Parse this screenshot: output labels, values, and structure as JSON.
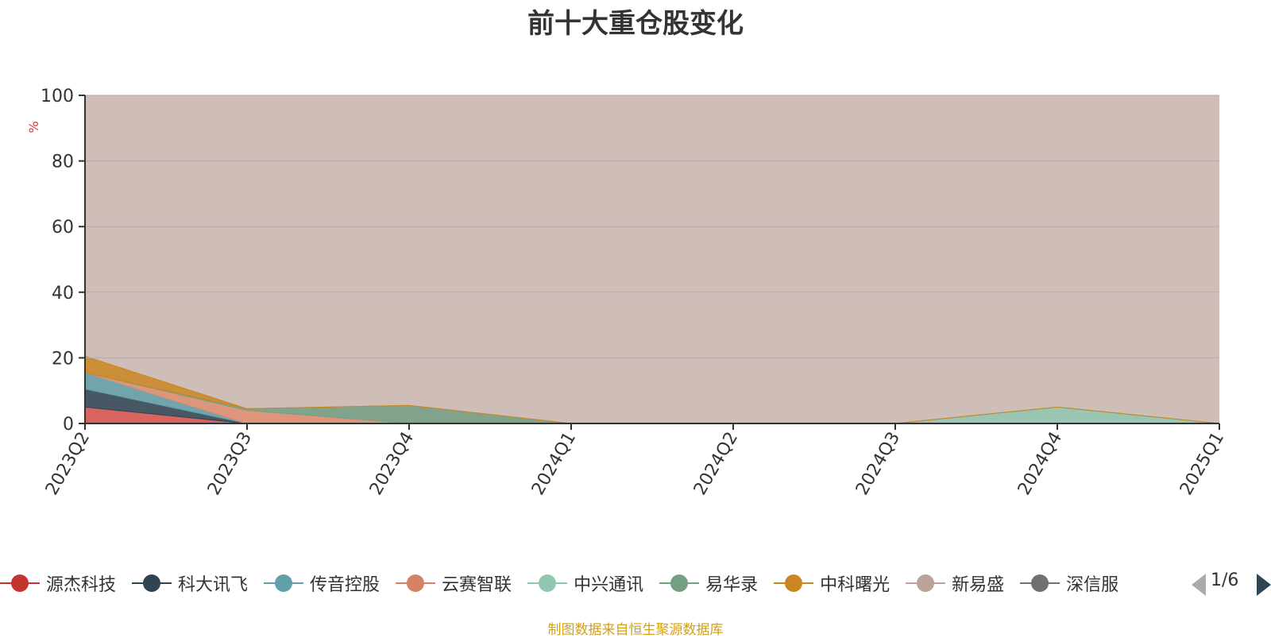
{
  "title": "前十大重仓股变化",
  "unit_label": "%",
  "source_note": "制图数据来自恒生聚源数据库",
  "pager": {
    "label": "1/6"
  },
  "chart_data": {
    "type": "area",
    "stacked": true,
    "title": "前十大重仓股变化",
    "ylabel": "%",
    "ylim": [
      0,
      100
    ],
    "yticks": [
      0,
      20,
      40,
      60,
      80,
      100
    ],
    "grid": true,
    "legend_position": "bottom",
    "categories": [
      "2023Q2",
      "2023Q3",
      "2023Q4",
      "2024Q1",
      "2024Q2",
      "2024Q3",
      "2024Q4",
      "2025Q1"
    ],
    "series": [
      {
        "name": "源杰科技",
        "color": "#d9534f",
        "values": [
          5,
          0,
          0,
          0,
          0,
          0,
          0,
          0
        ]
      },
      {
        "name": "科大讯飞",
        "color": "#2f4554",
        "values": [
          5.5,
          0,
          0,
          0,
          0,
          0,
          0,
          0
        ]
      },
      {
        "name": "传音控股",
        "color": "#61a0a8",
        "values": [
          5,
          0,
          0,
          0,
          0,
          0,
          0,
          0
        ]
      },
      {
        "name": "云赛智联",
        "color": "#e08f70",
        "values": [
          0,
          4,
          0,
          0,
          0,
          0,
          0,
          0
        ]
      },
      {
        "name": "中兴通讯",
        "color": "#91c7ae",
        "values": [
          0,
          0,
          0,
          0,
          0,
          0,
          5,
          0
        ]
      },
      {
        "name": "易华录",
        "color": "#749f83",
        "values": [
          0,
          0.5,
          5.5,
          0,
          0,
          0,
          0,
          0
        ]
      },
      {
        "name": "中科曙光",
        "color": "#ca8622",
        "values": [
          5,
          0,
          0,
          0,
          0,
          0,
          0,
          0
        ]
      }
    ]
  },
  "legend": [
    {
      "name": "源杰科技",
      "color": "#c23531"
    },
    {
      "name": "科大讯飞",
      "color": "#2f4554"
    },
    {
      "name": "传音控股",
      "color": "#61a0a8"
    },
    {
      "name": "云赛智联",
      "color": "#d48265"
    },
    {
      "name": "中兴通讯",
      "color": "#91c7ae"
    },
    {
      "name": "易华录",
      "color": "#749f83"
    },
    {
      "name": "中科曙光",
      "color": "#ca8622"
    },
    {
      "name": "新易盛",
      "color": "#bda29a"
    },
    {
      "name": "深信服",
      "color": "#6e7074"
    }
  ]
}
